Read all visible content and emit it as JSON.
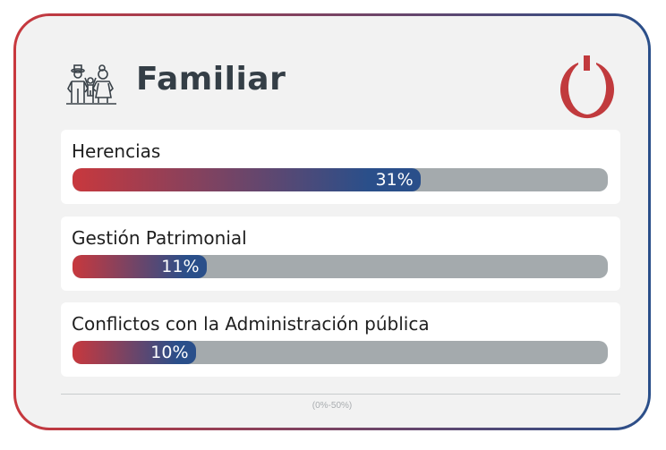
{
  "header": {
    "title": "Familiar",
    "icon": "family-icon",
    "logo": "power-logo-icon"
  },
  "scale": {
    "label": "(0%-50%)",
    "max": 50
  },
  "colors": {
    "gradient_start": "#c8383d",
    "gradient_end": "#2a4f8a",
    "track": "#a4aaad"
  },
  "items": [
    {
      "label": "Herencias",
      "value": 31,
      "value_label": "31%"
    },
    {
      "label": "Gestión Patrimonial",
      "value": 11,
      "value_label": "11%"
    },
    {
      "label": "Conflictos con la Administración pública",
      "value": 10,
      "value_label": "10%"
    }
  ]
}
